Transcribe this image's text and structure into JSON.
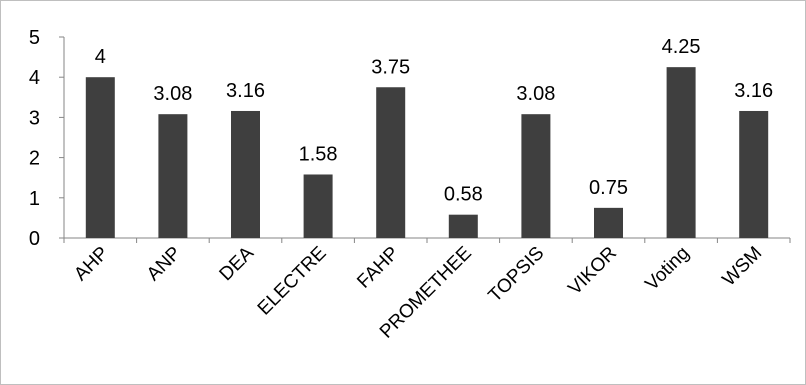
{
  "chart_data": {
    "type": "bar",
    "title": "",
    "xlabel": "",
    "ylabel": "",
    "ylim": [
      0,
      5
    ],
    "yticks": [
      0,
      1,
      2,
      3,
      4,
      5
    ],
    "grid": false,
    "legend": "none",
    "bar_color": "#3f3f3f",
    "categories": [
      "AHP",
      "ANP",
      "DEA",
      "ELECTRE",
      "FAHP",
      "PROMETHEE",
      "TOPSIS",
      "VIKOR",
      "Voting",
      "WSM"
    ],
    "values": [
      4,
      3.08,
      3.16,
      1.58,
      3.75,
      0.58,
      3.08,
      0.75,
      4.25,
      3.16
    ],
    "data_labels": [
      "4",
      "3.08",
      "3.16",
      "1.58",
      "3.75",
      "0.58",
      "3.08",
      "0.75",
      "4.25",
      "3.16"
    ]
  }
}
